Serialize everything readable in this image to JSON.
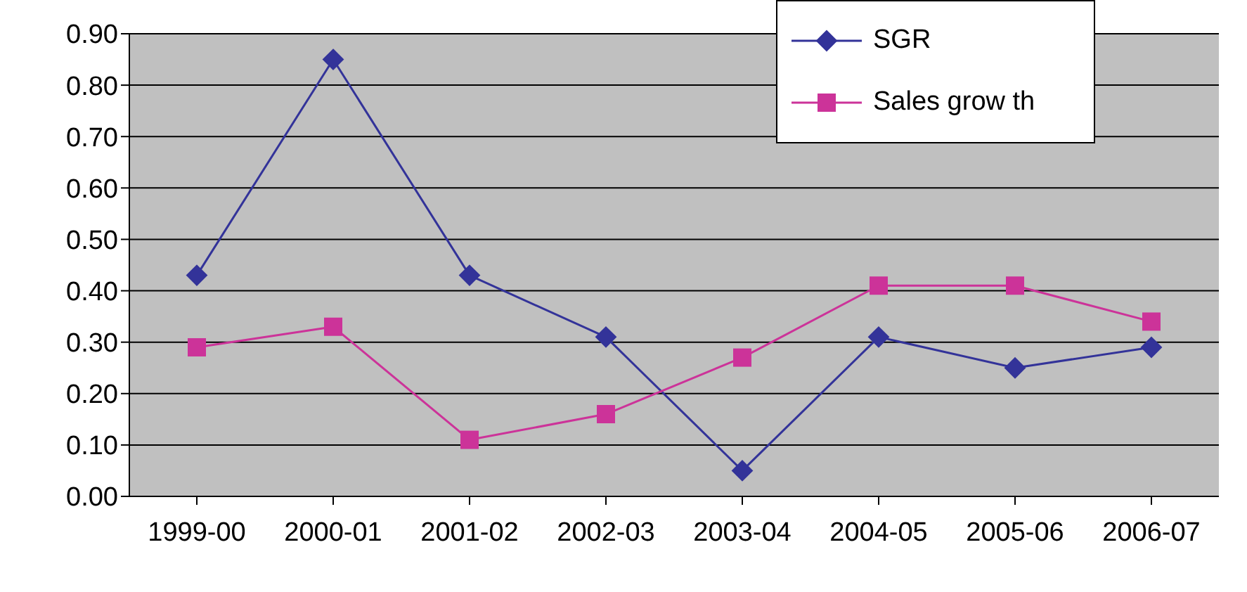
{
  "chart_data": {
    "type": "line",
    "categories": [
      "1999-00",
      "2000-01",
      "2001-02",
      "2002-03",
      "2003-04",
      "2004-05",
      "2005-06",
      "2006-07"
    ],
    "series": [
      {
        "name": "SGR",
        "color": "#333399",
        "marker": "diamond",
        "values": [
          0.43,
          0.85,
          0.43,
          0.31,
          0.05,
          0.31,
          0.25,
          0.29
        ]
      },
      {
        "name": "Sales grow th",
        "color": "#cc3399",
        "marker": "square",
        "values": [
          0.29,
          0.33,
          0.11,
          0.16,
          0.27,
          0.41,
          0.41,
          0.34
        ]
      }
    ],
    "ylim": [
      0,
      0.9
    ],
    "yticks": [
      {
        "value": 0,
        "label": "0.00"
      },
      {
        "value": 0.1,
        "label": "0.10"
      },
      {
        "value": 0.2,
        "label": "0.20"
      },
      {
        "value": 0.3,
        "label": "0.30"
      },
      {
        "value": 0.4,
        "label": "0.40"
      },
      {
        "value": 0.5,
        "label": "0.50"
      },
      {
        "value": 0.6,
        "label": "0.60"
      },
      {
        "value": 0.7,
        "label": "0.70"
      },
      {
        "value": 0.8,
        "label": "0.80"
      },
      {
        "value": 0.9,
        "label": "0.90"
      }
    ],
    "grid": "y",
    "legend": "top right"
  }
}
